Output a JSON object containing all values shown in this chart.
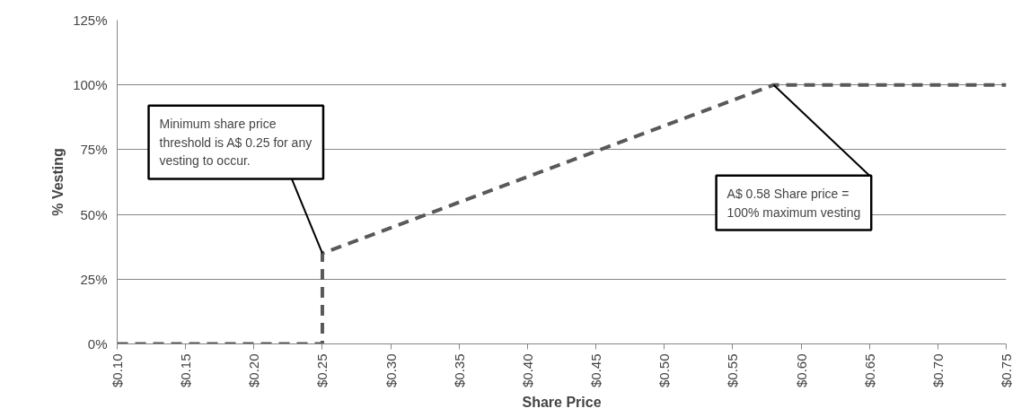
{
  "chart_data": {
    "type": "line",
    "xlabel": "Share Price",
    "ylabel": "% Vesting",
    "x": [
      0.1,
      0.25,
      0.25,
      0.58,
      0.75
    ],
    "series": [
      {
        "color": "#595959",
        "values": [
          0,
          0,
          35,
          100,
          100
        ]
      }
    ],
    "xlim": [
      0.1,
      0.75
    ],
    "xticks": [
      {
        "value": 0.1,
        "label": "$0.10"
      },
      {
        "value": 0.15,
        "label": "$0.15"
      },
      {
        "value": 0.2,
        "label": "$0.20"
      },
      {
        "value": 0.25,
        "label": "$0.25"
      },
      {
        "value": 0.3,
        "label": "$0.30"
      },
      {
        "value": 0.35,
        "label": "$0.35"
      },
      {
        "value": 0.4,
        "label": "$0.40"
      },
      {
        "value": 0.45,
        "label": "$0.45"
      },
      {
        "value": 0.5,
        "label": "$0.50"
      },
      {
        "value": 0.55,
        "label": "$0.55"
      },
      {
        "value": 0.6,
        "label": "$0.60"
      },
      {
        "value": 0.65,
        "label": "$0.65"
      },
      {
        "value": 0.7,
        "label": "$0.70"
      },
      {
        "value": 0.75,
        "label": "$0.75"
      }
    ],
    "ylim": [
      0,
      125
    ],
    "yticks": [
      {
        "value": 0,
        "label": "0%"
      },
      {
        "value": 25,
        "label": "25%"
      },
      {
        "value": 50,
        "label": "50%"
      },
      {
        "value": 75,
        "label": "75%"
      },
      {
        "value": 100,
        "label": "100%"
      },
      {
        "value": 125,
        "label": "125%"
      }
    ],
    "grid": "y",
    "line_style": "dashed",
    "marker": "none",
    "annotations": [
      {
        "text": "Minimum share price threshold is A$ 0.25 for any vesting to occur.",
        "x": 0.25,
        "y": 35
      },
      {
        "text": "A$ 0.58 Share price = 100% maximum vesting",
        "x": 0.58,
        "y": 100
      }
    ]
  }
}
